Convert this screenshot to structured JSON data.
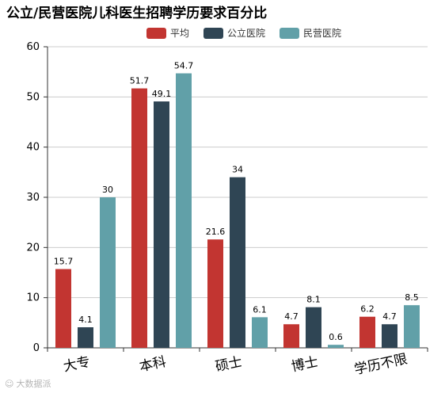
{
  "chart_data": {
    "type": "bar",
    "title": "公立/民营医院儿科医生招聘学历要求百分比",
    "categories": [
      "大专",
      "本科",
      "硕士",
      "博士",
      "学历不限"
    ],
    "series": [
      {
        "name": "平均",
        "values": [
          15.7,
          51.7,
          21.6,
          4.7,
          6.2
        ],
        "color": "#c23531"
      },
      {
        "name": "公立医院",
        "values": [
          4.1,
          49.1,
          34,
          8.1,
          4.7
        ],
        "color": "#2f4554"
      },
      {
        "name": "民营医院",
        "values": [
          30,
          54.7,
          6.1,
          0.6,
          8.5
        ],
        "color": "#61a0a8"
      }
    ],
    "ylim": [
      0,
      60
    ],
    "yticks": [
      0,
      10,
      20,
      30,
      40,
      50,
      60
    ],
    "grid": true,
    "legend_position": "top-center",
    "label_position": "top"
  },
  "watermark": {
    "text": "大数据派"
  }
}
